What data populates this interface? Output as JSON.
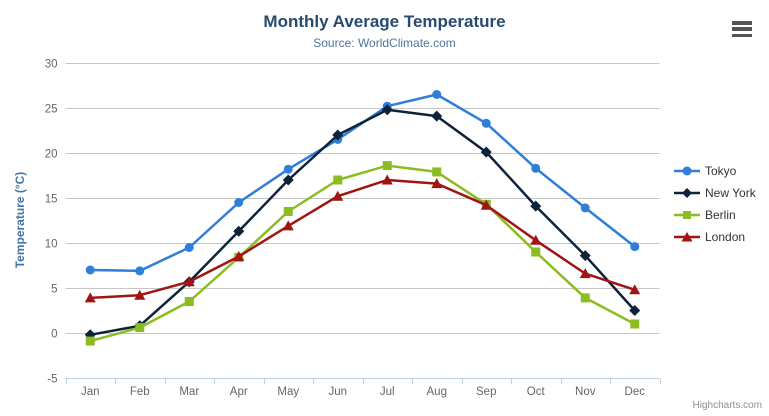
{
  "chart_data": {
    "type": "line",
    "title": "Monthly Average Temperature",
    "subtitle": "Source: WorldClimate.com",
    "categories": [
      "Jan",
      "Feb",
      "Mar",
      "Apr",
      "May",
      "Jun",
      "Jul",
      "Aug",
      "Sep",
      "Oct",
      "Nov",
      "Dec"
    ],
    "series": [
      {
        "name": "Tokyo",
        "color": "#2f7ed8",
        "marker": "circle",
        "values": [
          7.0,
          6.9,
          9.5,
          14.5,
          18.2,
          21.5,
          25.2,
          26.5,
          23.3,
          18.3,
          13.9,
          9.6
        ]
      },
      {
        "name": "New York",
        "color": "#0d233a",
        "marker": "diamond",
        "values": [
          -0.2,
          0.8,
          5.7,
          11.3,
          17.0,
          22.0,
          24.8,
          24.1,
          20.1,
          14.1,
          8.6,
          2.5
        ]
      },
      {
        "name": "Berlin",
        "color": "#8bbc21",
        "marker": "square",
        "values": [
          -0.9,
          0.6,
          3.5,
          8.4,
          13.5,
          17.0,
          18.6,
          17.9,
          14.3,
          9.0,
          3.9,
          1.0
        ]
      },
      {
        "name": "London",
        "color": "#a01414",
        "marker": "triangle",
        "values": [
          3.9,
          4.2,
          5.7,
          8.5,
          11.9,
          15.2,
          17.0,
          16.6,
          14.2,
          10.3,
          6.6,
          4.8
        ]
      }
    ],
    "xlabel": "",
    "ylabel": "Temperature (°C)",
    "ylim": [
      -5,
      30
    ],
    "yticks": [
      30,
      25,
      20,
      15,
      10,
      5,
      0,
      -5
    ],
    "grid": true,
    "legend_position": "right"
  },
  "credits": {
    "label": "Highcharts.com"
  },
  "export_menu": {
    "icon": "hamburger-icon"
  },
  "colors": {
    "title": "#274b6d",
    "subtitle": "#4d759e",
    "axis_label": "#666666",
    "axis_title": "#4572a7",
    "gridline": "#c6c6c6",
    "axis_line": "#c0d0e0",
    "legend_text": "#333333",
    "credits": "#909090"
  }
}
